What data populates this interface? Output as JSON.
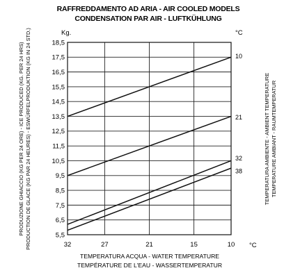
{
  "chart_data": {
    "type": "line",
    "title": [
      "RAFFREDDAMENTO AD ARIA - AIR COOLED MODELS",
      "CONDENSATION PAR AIR - LUFTKÜHLUNG"
    ],
    "xlabel": [
      "TEMPERATURA ACQUA - WATER TEMPERATURE",
      "TEMPÉRATURE DE L'EAU  - WASSERTEMPERATUR"
    ],
    "ylabel": [
      "PRODUZIONE GHIACCIO (KG PER 24 ORE) - ICE PRODUCED (KG. PER 24 HRS)",
      "PRODUCTION DE GLACE (KG PAR 24 HEURES) - ESWÜRFELPRODUKTION (KG IN 24 STD.)"
    ],
    "right_label": [
      "TEMPERATURA AMBIENTE - AMBIENT TEMPERATURE",
      "TEMPERATURE AMBIANT - RAUMTEMPERATUR"
    ],
    "y_unit": "Kg.",
    "x_unit": "°C",
    "series_unit": "°C",
    "x_ticks": [
      "32",
      "27",
      "21",
      "15",
      "10"
    ],
    "x_reversed": true,
    "xlim": [
      32,
      10
    ],
    "y_ticks": [
      "18,5",
      "17,5",
      "16,5",
      "15,5",
      "14,5",
      "13,5",
      "12,5",
      "11,5",
      "10,5",
      "9,5",
      "8,5",
      "7,5",
      "6,5",
      "5,5"
    ],
    "ylim": [
      5.5,
      18.5
    ],
    "grid": true,
    "series": [
      {
        "label": "10",
        "x": [
          32,
          10
        ],
        "y": [
          13.5,
          17.5
        ]
      },
      {
        "label": "21",
        "x": [
          32,
          10
        ],
        "y": [
          9.5,
          13.5
        ]
      },
      {
        "label": "32",
        "x": [
          32,
          10
        ],
        "y": [
          6.2,
          10.5
        ]
      },
      {
        "label": "38",
        "x": [
          32,
          10
        ],
        "y": [
          5.8,
          10.0
        ]
      }
    ]
  }
}
